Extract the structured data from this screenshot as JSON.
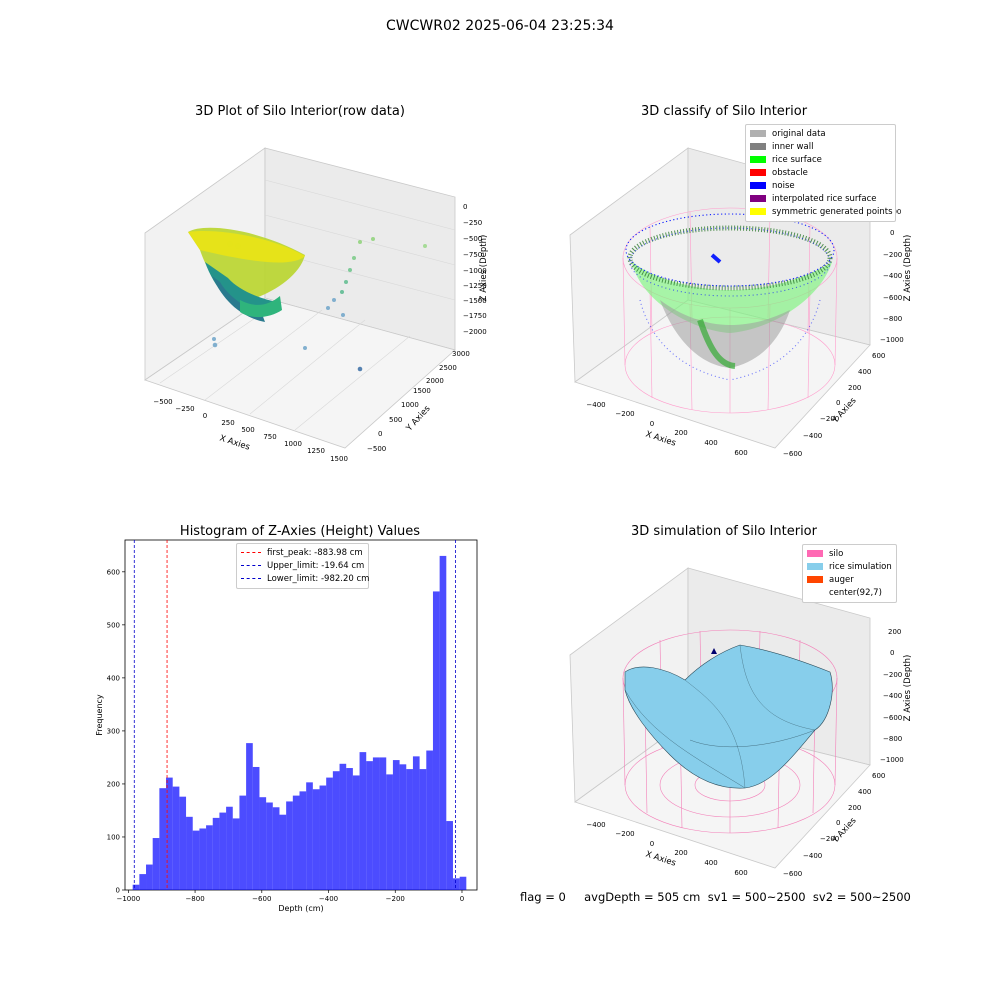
{
  "figure": {
    "suptitle": "CWCWR02 2025-06-04 23:25:34",
    "footer": "flag = 0     avgDepth = 505 cm  sv1 = 500~2500  sv2 = 500~2500"
  },
  "panels": {
    "raw": {
      "title": "3D Plot of Silo Interior(row data)",
      "xlabel": "X Axies",
      "ylabel": "Y Axies",
      "zlabel": "Z Axies (Depth)",
      "xticks": [
        "−500",
        "−250",
        "0",
        "250",
        "500",
        "750",
        "1000",
        "1250",
        "1500"
      ],
      "yticks": [
        "−500",
        "0",
        "500",
        "1000",
        "1500",
        "2000",
        "2500",
        "3000"
      ],
      "zticks": [
        "0",
        "−250",
        "−500",
        "−750",
        "−1000",
        "−1250",
        "−1500",
        "−1750",
        "−2000"
      ],
      "colormap": "viridis"
    },
    "classify": {
      "title": "3D classify of Silo Interior",
      "xlabel": "X Axies",
      "ylabel": "Y Axies",
      "zlabel": "Z Axies (Depth)",
      "xticks": [
        "−400",
        "−200",
        "0",
        "200",
        "400",
        "600"
      ],
      "yticks": [
        "−600",
        "−400",
        "−200",
        "0",
        "200",
        "400",
        "600"
      ],
      "zticks": [
        "200",
        "0",
        "−200",
        "−400",
        "−600",
        "−800",
        "−1000"
      ],
      "legend": [
        {
          "label": "original data",
          "color": "#b0b0b0"
        },
        {
          "label": "inner wall",
          "color": "#808080"
        },
        {
          "label": "rice surface",
          "color": "#00ff00"
        },
        {
          "label": "obstacle",
          "color": "#ff0000"
        },
        {
          "label": "noise",
          "color": "#0000ff"
        },
        {
          "label": "interpolated rice surface",
          "color": "#800080"
        },
        {
          "label": "symmetric generated points",
          "color": "#ffff00"
        }
      ]
    },
    "histogram": {
      "title": "Histogram of Z-Axies (Height) Values",
      "xlabel": "Depth (cm)",
      "ylabel": "Frequency",
      "xticks": [
        "−1000",
        "−800",
        "−600",
        "−400",
        "−200",
        "0"
      ],
      "yticks": [
        "0",
        "100",
        "200",
        "300",
        "400",
        "500",
        "600"
      ],
      "legend": [
        {
          "label": "first_peak: -883.98 cm",
          "color": "#ff0000"
        },
        {
          "label": "Upper_limit: -19.64 cm",
          "color": "#0000cc"
        },
        {
          "label": "Lower_limit: -982.20 cm",
          "color": "#0000cc"
        }
      ]
    },
    "simulation": {
      "title": "3D simulation of Silo Interior",
      "xlabel": "X Axies",
      "ylabel": "Y Axies",
      "zlabel": "Z Axies (Depth)",
      "xticks": [
        "−400",
        "−200",
        "0",
        "200",
        "400",
        "600"
      ],
      "yticks": [
        "−600",
        "−400",
        "−200",
        "0",
        "200",
        "400",
        "600"
      ],
      "zticks": [
        "200",
        "0",
        "−200",
        "−400",
        "−600",
        "−800",
        "−1000"
      ],
      "legend": [
        {
          "label": "silo",
          "color": "#ff69b4"
        },
        {
          "label": "rice simulation",
          "color": "#87ceeb"
        },
        {
          "label": "auger",
          "color": "#ff4500"
        },
        {
          "label": "center(92,7)",
          "color": "#ffffff"
        }
      ]
    }
  },
  "chart_data": [
    {
      "type": "scatter",
      "title": "3D Plot of Silo Interior(row data)",
      "xlabel": "X Axies",
      "ylabel": "Y Axies",
      "zlabel": "Z Axies (Depth)",
      "xlim": [
        -600,
        1500
      ],
      "ylim": [
        -600,
        3000
      ],
      "zlim": [
        -2000,
        0
      ]
    },
    {
      "type": "scatter",
      "title": "3D classify of Silo Interior",
      "xlabel": "X Axies",
      "ylabel": "Y Axies",
      "zlabel": "Z Axies (Depth)",
      "xlim": [
        -500,
        650
      ],
      "ylim": [
        -650,
        650
      ],
      "zlim": [
        -1000,
        200
      ],
      "series": [
        {
          "name": "original data"
        },
        {
          "name": "inner wall"
        },
        {
          "name": "rice surface"
        },
        {
          "name": "obstacle"
        },
        {
          "name": "noise"
        },
        {
          "name": "interpolated rice surface"
        },
        {
          "name": "symmetric generated points"
        }
      ]
    },
    {
      "type": "bar",
      "title": "Histogram of Z-Axies (Height) Values",
      "xlabel": "Depth (cm)",
      "ylabel": "Frequency",
      "xlim": [
        -1010,
        45
      ],
      "ylim": [
        0,
        660
      ],
      "bin_start": -987,
      "bin_width": 20,
      "values": [
        10,
        30,
        48,
        98,
        192,
        212,
        195,
        176,
        138,
        112,
        116,
        122,
        136,
        146,
        157,
        135,
        178,
        277,
        232,
        175,
        165,
        156,
        142,
        167,
        178,
        186,
        203,
        190,
        197,
        212,
        224,
        238,
        230,
        216,
        260,
        243,
        250,
        250,
        218,
        245,
        237,
        228,
        252,
        228,
        263,
        563,
        630,
        130,
        22,
        25
      ],
      "vlines": [
        {
          "label": "first_peak: -883.98 cm",
          "x": -883.98,
          "color": "#ff0000"
        },
        {
          "label": "Upper_limit: -19.64 cm",
          "x": -19.64,
          "color": "#0000cc"
        },
        {
          "label": "Lower_limit: -982.20 cm",
          "x": -982.2,
          "color": "#0000cc"
        }
      ]
    },
    {
      "type": "area",
      "title": "3D simulation of Silo Interior",
      "xlabel": "X Axies",
      "ylabel": "Y Axies",
      "zlabel": "Z Axies (Depth)",
      "xlim": [
        -500,
        650
      ],
      "ylim": [
        -650,
        650
      ],
      "zlim": [
        -1000,
        250
      ],
      "series": [
        {
          "name": "silo"
        },
        {
          "name": "rice simulation"
        },
        {
          "name": "auger"
        },
        {
          "name": "center(92,7)"
        }
      ]
    }
  ]
}
